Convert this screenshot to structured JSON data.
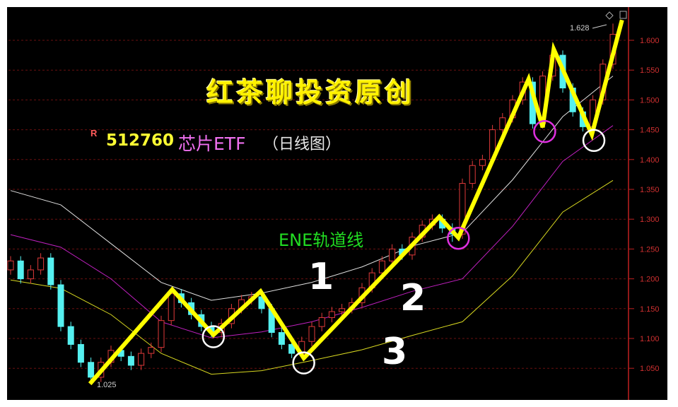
{
  "chart_data": {
    "type": "candlestick",
    "title": "红茶聊投资原创",
    "ticker_marker": "R",
    "code": "512760",
    "name": "芯片ETF",
    "period": "（日线图）",
    "indicator_label": "ENE轨道线",
    "y_ticks": [
      "1.050",
      "1.100",
      "1.150",
      "1.200",
      "1.250",
      "1.300",
      "1.350",
      "1.400",
      "1.450",
      "1.500",
      "1.550",
      "1.600"
    ],
    "ylim": [
      1.0,
      1.66
    ],
    "grid": true,
    "high_label": "1.628",
    "low_label": "1.025",
    "colors": {
      "up": "#e03a3a",
      "down": "#55f0f0",
      "upper_band": "#e0e0e0",
      "mid_band": "#c020c0",
      "lower_band": "#d8d820",
      "zigzag": "#ffff00",
      "axis": "#c02020"
    },
    "candles": [
      [
        1.215,
        1.238,
        1.207,
        1.23
      ],
      [
        1.23,
        1.238,
        1.192,
        1.2
      ],
      [
        1.2,
        1.223,
        1.192,
        1.215
      ],
      [
        1.215,
        1.243,
        1.207,
        1.235
      ],
      [
        1.235,
        1.243,
        1.182,
        1.19
      ],
      [
        1.19,
        1.198,
        1.112,
        1.12
      ],
      [
        1.12,
        1.128,
        1.082,
        1.09
      ],
      [
        1.09,
        1.098,
        1.052,
        1.06
      ],
      [
        1.06,
        1.068,
        1.025,
        1.035
      ],
      [
        1.035,
        1.068,
        1.027,
        1.06
      ],
      [
        1.06,
        1.088,
        1.052,
        1.08
      ],
      [
        1.08,
        1.088,
        1.062,
        1.07
      ],
      [
        1.07,
        1.078,
        1.047,
        1.055
      ],
      [
        1.055,
        1.083,
        1.047,
        1.075
      ],
      [
        1.075,
        1.093,
        1.067,
        1.085
      ],
      [
        1.085,
        1.138,
        1.077,
        1.13
      ],
      [
        1.13,
        1.183,
        1.122,
        1.175
      ],
      [
        1.175,
        1.183,
        1.152,
        1.16
      ],
      [
        1.16,
        1.168,
        1.132,
        1.14
      ],
      [
        1.14,
        1.148,
        1.112,
        1.12
      ],
      [
        1.12,
        1.128,
        1.102,
        1.11
      ],
      [
        1.11,
        1.133,
        1.102,
        1.125
      ],
      [
        1.125,
        1.158,
        1.117,
        1.15
      ],
      [
        1.15,
        1.173,
        1.142,
        1.165
      ],
      [
        1.165,
        1.178,
        1.157,
        1.17
      ],
      [
        1.17,
        1.178,
        1.142,
        1.15
      ],
      [
        1.15,
        1.158,
        1.102,
        1.11
      ],
      [
        1.11,
        1.118,
        1.082,
        1.09
      ],
      [
        1.09,
        1.098,
        1.067,
        1.075
      ],
      [
        1.075,
        1.103,
        1.067,
        1.095
      ],
      [
        1.095,
        1.128,
        1.087,
        1.12
      ],
      [
        1.12,
        1.143,
        1.112,
        1.135
      ],
      [
        1.135,
        1.153,
        1.127,
        1.145
      ],
      [
        1.145,
        1.158,
        1.137,
        1.15
      ],
      [
        1.15,
        1.168,
        1.142,
        1.16
      ],
      [
        1.16,
        1.193,
        1.152,
        1.185
      ],
      [
        1.185,
        1.218,
        1.177,
        1.21
      ],
      [
        1.21,
        1.238,
        1.202,
        1.23
      ],
      [
        1.23,
        1.258,
        1.222,
        1.25
      ],
      [
        1.25,
        1.258,
        1.232,
        1.24
      ],
      [
        1.24,
        1.278,
        1.232,
        1.27
      ],
      [
        1.27,
        1.298,
        1.262,
        1.29
      ],
      [
        1.29,
        1.308,
        1.282,
        1.3
      ],
      [
        1.3,
        1.308,
        1.277,
        1.285
      ],
      [
        1.285,
        1.293,
        1.262,
        1.275
      ],
      [
        1.275,
        1.368,
        1.267,
        1.36
      ],
      [
        1.36,
        1.398,
        1.352,
        1.39
      ],
      [
        1.39,
        1.408,
        1.382,
        1.4
      ],
      [
        1.4,
        1.458,
        1.392,
        1.45
      ],
      [
        1.45,
        1.478,
        1.442,
        1.47
      ],
      [
        1.47,
        1.508,
        1.462,
        1.5
      ],
      [
        1.5,
        1.538,
        1.492,
        1.53
      ],
      [
        1.53,
        1.538,
        1.452,
        1.46
      ],
      [
        1.46,
        1.548,
        1.452,
        1.54
      ],
      [
        1.54,
        1.59,
        1.532,
        1.575
      ],
      [
        1.575,
        1.583,
        1.512,
        1.52
      ],
      [
        1.52,
        1.528,
        1.472,
        1.48
      ],
      [
        1.48,
        1.488,
        1.447,
        1.455
      ],
      [
        1.455,
        1.508,
        1.447,
        1.5
      ],
      [
        1.5,
        1.568,
        1.492,
        1.56
      ],
      [
        1.56,
        1.628,
        1.552,
        1.61
      ]
    ],
    "band_index": [
      0,
      5,
      10,
      15,
      20,
      25,
      30,
      35,
      40,
      45,
      50,
      55,
      60
    ],
    "upper_band": [
      1.348,
      1.324,
      1.259,
      1.194,
      1.164,
      1.176,
      1.194,
      1.22,
      1.255,
      1.277,
      1.366,
      1.472,
      1.54
    ],
    "mid_band": [
      1.274,
      1.253,
      1.2,
      1.128,
      1.101,
      1.111,
      1.128,
      1.152,
      1.179,
      1.2,
      1.288,
      1.397,
      1.457
    ],
    "lower_band": [
      1.198,
      1.184,
      1.14,
      1.075,
      1.04,
      1.046,
      1.063,
      1.081,
      1.105,
      1.128,
      1.205,
      1.312,
      1.365
    ],
    "zigzag": [
      [
        7.9,
        1.024
      ],
      [
        16.1,
        1.182
      ],
      [
        20.2,
        1.106
      ],
      [
        24.9,
        1.179
      ],
      [
        29.2,
        1.067
      ],
      [
        42.7,
        1.304
      ],
      [
        44.6,
        1.269
      ],
      [
        51.6,
        1.535
      ],
      [
        53.0,
        1.454
      ],
      [
        54.1,
        1.585
      ],
      [
        57.9,
        1.442
      ],
      [
        60.9,
        1.634
      ]
    ],
    "circles": [
      {
        "i": 20.2,
        "p": 1.103,
        "color": "#ffffff"
      },
      {
        "i": 29.2,
        "p": 1.059,
        "color": "#ffffff"
      },
      {
        "i": 44.6,
        "p": 1.268,
        "color": "#e030e0"
      },
      {
        "i": 53.2,
        "p": 1.447,
        "color": "#e030e0"
      },
      {
        "i": 58.1,
        "p": 1.432,
        "color": "#ffffff"
      }
    ],
    "annotations": [
      "1",
      "2",
      "3"
    ]
  }
}
